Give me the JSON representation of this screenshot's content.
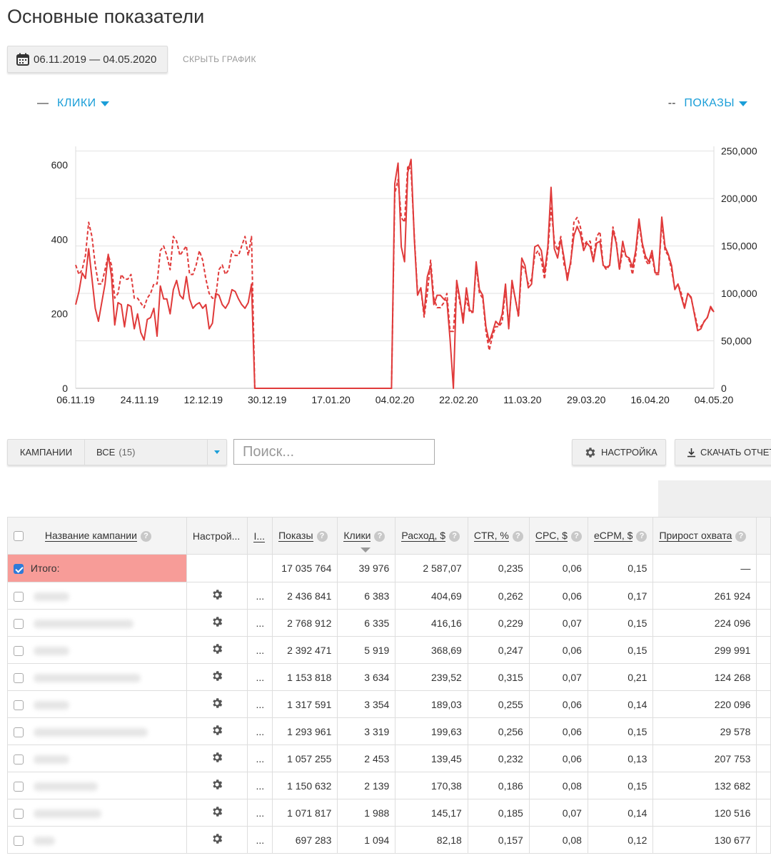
{
  "page": {
    "title": "Основные показатели"
  },
  "date_range": {
    "label": "06.11.2019 — 04.05.2020",
    "icon": "calendar-icon"
  },
  "hide_chart_label": "СКРЫТЬ ГРАФИК",
  "metrics": {
    "left": {
      "dash": "—",
      "label": "КЛИКИ"
    },
    "right": {
      "dash": "--",
      "label": "ПОКАЗЫ"
    }
  },
  "colors": {
    "accent": "#1a9ed8",
    "line": "#e03a3a",
    "total_row": "#f79c98",
    "checkbox": "#2f7bd9"
  },
  "chart_data": {
    "type": "line",
    "x_ticks": [
      "06.11.19",
      "24.11.19",
      "12.12.19",
      "30.12.19",
      "17.01.20",
      "04.02.20",
      "22.02.20",
      "11.03.20",
      "29.03.20",
      "16.04.20",
      "04.05.20"
    ],
    "y_left_ticks": [
      "0",
      "200",
      "400",
      "600"
    ],
    "y_right_ticks": [
      "0",
      "50,000",
      "100,000",
      "150,000",
      "200,000",
      "250,000"
    ],
    "y_left_range": [
      0,
      650
    ],
    "y_right_range": [
      0,
      255000
    ],
    "grid": true,
    "series": [
      {
        "name": "КЛИКИ",
        "axis": "left",
        "style": "solid",
        "values": [
          225,
          260,
          310,
          295,
          375,
          295,
          215,
          180,
          230,
          280,
          360,
          300,
          170,
          230,
          225,
          165,
          225,
          220,
          160,
          200,
          150,
          130,
          185,
          190,
          215,
          140,
          275,
          240,
          240,
          200,
          265,
          290,
          250,
          240,
          300,
          240,
          215,
          225,
          230,
          215,
          225,
          160,
          175,
          255,
          250,
          225,
          215,
          230,
          265,
          260,
          240,
          225,
          215,
          230,
          280,
          0,
          0,
          0,
          0,
          0,
          0,
          0,
          0,
          0,
          0,
          0,
          0,
          0,
          0,
          0,
          0,
          0,
          0,
          0,
          0,
          0,
          0,
          0,
          0,
          0,
          0,
          0,
          0,
          0,
          0,
          0,
          0,
          0,
          0,
          0,
          0,
          0,
          0,
          0,
          0,
          0,
          0,
          0,
          550,
          605,
          380,
          340,
          580,
          615,
          400,
          250,
          270,
          200,
          300,
          330,
          225,
          250,
          250,
          240,
          235,
          130,
          0,
          290,
          240,
          175,
          270,
          210,
          205,
          340,
          265,
          250,
          165,
          125,
          150,
          180,
          170,
          200,
          280,
          160,
          290,
          240,
          195,
          350,
          330,
          270,
          280,
          380,
          385,
          370,
          310,
          380,
          540,
          375,
          350,
          400,
          350,
          290,
          340,
          410,
          435,
          415,
          370,
          390,
          380,
          340,
          390,
          395,
          330,
          325,
          330,
          425,
          390,
          320,
          395,
          355,
          350,
          325,
          370,
          455,
          390,
          355,
          340,
          370,
          310,
          310,
          460,
          380,
          360,
          330,
          265,
          280,
          245,
          215,
          255,
          245,
          200,
          155,
          160,
          180,
          190,
          220,
          205
        ]
      },
      {
        "name": "ПОКАЗЫ",
        "axis": "right",
        "style": "dashed",
        "values": [
          130000,
          120000,
          125000,
          140000,
          175000,
          160000,
          130000,
          110000,
          110000,
          125000,
          140000,
          130000,
          95000,
          100000,
          120000,
          115000,
          115000,
          120000,
          95000,
          95000,
          90000,
          85000,
          95000,
          100000,
          110000,
          110000,
          145000,
          150000,
          140000,
          125000,
          160000,
          155000,
          140000,
          145000,
          150000,
          120000,
          120000,
          130000,
          145000,
          135000,
          115000,
          100000,
          95000,
          95000,
          125000,
          130000,
          120000,
          125000,
          145000,
          140000,
          140000,
          150000,
          160000,
          140000,
          160000,
          0,
          0,
          0,
          0,
          0,
          0,
          0,
          0,
          0,
          0,
          0,
          0,
          0,
          0,
          0,
          0,
          0,
          0,
          0,
          0,
          0,
          0,
          0,
          0,
          0,
          0,
          0,
          0,
          0,
          0,
          0,
          0,
          0,
          0,
          0,
          0,
          0,
          0,
          0,
          0,
          0,
          0,
          0,
          205000,
          220000,
          180000,
          175000,
          235000,
          230000,
          160000,
          100000,
          105000,
          75000,
          100000,
          135000,
          95000,
          85000,
          85000,
          90000,
          100000,
          60000,
          60000,
          110000,
          90000,
          75000,
          95000,
          80000,
          80000,
          130000,
          100000,
          95000,
          60000,
          40000,
          55000,
          65000,
          65000,
          70000,
          105000,
          65000,
          110000,
          95000,
          75000,
          130000,
          125000,
          110000,
          115000,
          140000,
          145000,
          135000,
          115000,
          145000,
          190000,
          155000,
          145000,
          160000,
          130000,
          120000,
          130000,
          175000,
          180000,
          170000,
          150000,
          155000,
          155000,
          135000,
          160000,
          165000,
          130000,
          125000,
          130000,
          170000,
          155000,
          125000,
          145000,
          140000,
          135000,
          120000,
          140000,
          175000,
          150000,
          135000,
          130000,
          140000,
          120000,
          120000,
          175000,
          145000,
          140000,
          125000,
          105000,
          110000,
          100000,
          85000,
          100000,
          95000,
          80000,
          65000,
          65000,
          70000,
          75000,
          85000,
          80000
        ]
      }
    ]
  },
  "toolbar": {
    "campaigns_label": "КАМПАНИИ",
    "filter_value": "ВСЕ",
    "filter_count": "(15)",
    "search_placeholder": "Поиск...",
    "settings_label": "НАСТРОЙКА",
    "download_label": "СКАЧАТЬ ОТЧЕТ"
  },
  "table": {
    "headers": {
      "name": "Название кампании",
      "settings": "Настрой...",
      "info": "I...",
      "shows": "Показы",
      "clicks": "Клики",
      "spend": "Расход, $",
      "ctr": "CTR, %",
      "cpc": "CPC, $",
      "ecpm": "eCPM, $",
      "reach": "Прирост охвата"
    },
    "total": {
      "label": "Итого:",
      "shows": "17 035 764",
      "clicks": "39 976",
      "spend": "2 587,07",
      "ctr": "0,235",
      "cpc": "0,06",
      "ecpm": "0,15",
      "reach": "—"
    },
    "rows": [
      {
        "shows": "2 436 841",
        "clicks": "6 383",
        "spend": "404,69",
        "ctr": "0,262",
        "cpc": "0,06",
        "ecpm": "0,17",
        "reach": "261 924",
        "more": "..."
      },
      {
        "shows": "2 768 912",
        "clicks": "6 335",
        "spend": "416,16",
        "ctr": "0,229",
        "cpc": "0,07",
        "ecpm": "0,15",
        "reach": "224 096",
        "more": "..."
      },
      {
        "shows": "2 392 471",
        "clicks": "5 919",
        "spend": "368,69",
        "ctr": "0,247",
        "cpc": "0,06",
        "ecpm": "0,15",
        "reach": "299 991",
        "more": "..."
      },
      {
        "shows": "1 153 818",
        "clicks": "3 634",
        "spend": "239,52",
        "ctr": "0,315",
        "cpc": "0,07",
        "ecpm": "0,21",
        "reach": "124 268",
        "more": "..."
      },
      {
        "shows": "1 317 591",
        "clicks": "3 354",
        "spend": "189,03",
        "ctr": "0,255",
        "cpc": "0,06",
        "ecpm": "0,14",
        "reach": "220 096",
        "more": "..."
      },
      {
        "shows": "1 293 961",
        "clicks": "3 319",
        "spend": "199,63",
        "ctr": "0,256",
        "cpc": "0,06",
        "ecpm": "0,15",
        "reach": "29 578",
        "more": "..."
      },
      {
        "shows": "1 057 255",
        "clicks": "2 453",
        "spend": "139,45",
        "ctr": "0,232",
        "cpc": "0,06",
        "ecpm": "0,13",
        "reach": "207 753",
        "more": "..."
      },
      {
        "shows": "1 150 632",
        "clicks": "2 139",
        "spend": "170,38",
        "ctr": "0,186",
        "cpc": "0,08",
        "ecpm": "0,15",
        "reach": "132 682",
        "more": "..."
      },
      {
        "shows": "1 071 817",
        "clicks": "1 988",
        "spend": "145,17",
        "ctr": "0,185",
        "cpc": "0,07",
        "ecpm": "0,14",
        "reach": "120 516",
        "more": "..."
      },
      {
        "shows": "697 283",
        "clicks": "1 094",
        "spend": "82,18",
        "ctr": "0,157",
        "cpc": "0,08",
        "ecpm": "0,12",
        "reach": "130 677",
        "more": "..."
      }
    ]
  }
}
